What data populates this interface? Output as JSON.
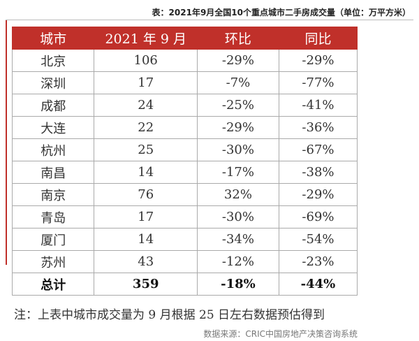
{
  "title": "表：2021年9月全国10个重点城市二手房成交量（单位：万平方米）",
  "table": {
    "header": [
      "城市",
      "2021 年 9 月",
      "环比",
      "同比"
    ],
    "rows": [
      [
        "北京",
        "106",
        "-29%",
        "-29%"
      ],
      [
        "深圳",
        "17",
        "-7%",
        "-77%"
      ],
      [
        "成都",
        "24",
        "-25%",
        "-41%"
      ],
      [
        "大连",
        "22",
        "-29%",
        "-36%"
      ],
      [
        "杭州",
        "25",
        "-30%",
        "-67%"
      ],
      [
        "南昌",
        "14",
        "-17%",
        "-38%"
      ],
      [
        "南京",
        "76",
        "32%",
        "-29%"
      ],
      [
        "青岛",
        "17",
        "-30%",
        "-69%"
      ],
      [
        "厦门",
        "14",
        "-34%",
        "-54%"
      ],
      [
        "苏州",
        "43",
        "-12%",
        "-23%"
      ]
    ],
    "total": [
      "总计",
      "359",
      "-18%",
      "-44%"
    ]
  },
  "note": "注：上表中城市成交量为 9 月根据 25 日左右数据预估得到",
  "source": "数据来源：CRIC中国房地产决策咨询系统"
}
